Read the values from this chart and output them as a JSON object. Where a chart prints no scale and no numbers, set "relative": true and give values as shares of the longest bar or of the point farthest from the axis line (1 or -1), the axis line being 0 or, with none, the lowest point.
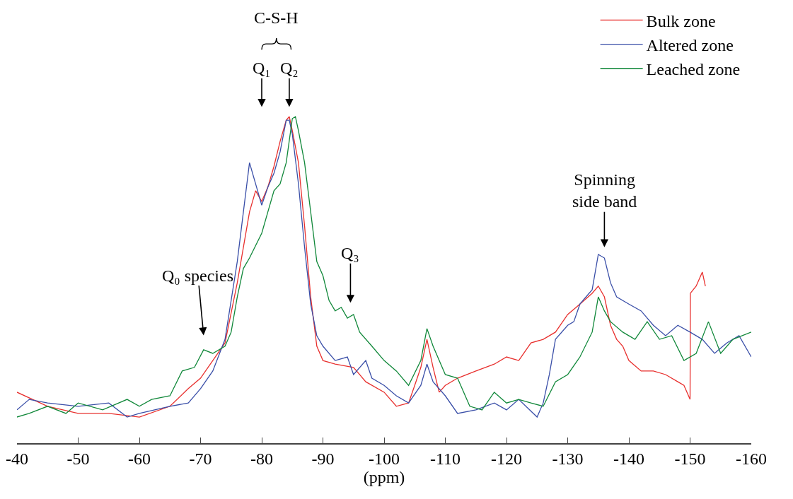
{
  "chart_data": {
    "type": "line",
    "relative": true,
    "xlabel": "(ppm)",
    "xlim": [
      -40,
      -160
    ],
    "xticks": [
      -40,
      -50,
      -60,
      -70,
      -80,
      -90,
      -100,
      -110,
      -120,
      -130,
      -140,
      -150,
      -160
    ],
    "grid": false,
    "legend": "top right",
    "marker": "none",
    "line_style": "solid",
    "series": [
      {
        "name": "Bulk zone",
        "color": "#e8302e",
        "x": [
          -40,
          -45,
          -50,
          -55,
          -60,
          -65,
          -68,
          -70,
          -72,
          -74,
          -76,
          -78,
          -79,
          -80,
          -81,
          -82,
          -83,
          -84,
          -84.5,
          -85,
          -86,
          -87,
          -88,
          -89,
          -90,
          -92,
          -95,
          -97,
          -100,
          -102,
          -104,
          -105,
          -106,
          -107,
          -108,
          -109,
          -110,
          -112,
          -115,
          -118,
          -120,
          -122,
          -124,
          -126,
          -128,
          -130,
          -132,
          -134,
          -135,
          -136,
          -137,
          -138,
          -139,
          -140,
          -142,
          -144,
          -146,
          -148,
          -149,
          -150,
          -150.05,
          -151,
          -152,
          -152.5
        ],
        "values": [
          0.156,
          0.113,
          0.091,
          0.091,
          0.08,
          0.113,
          0.167,
          0.199,
          0.253,
          0.307,
          0.491,
          0.708,
          0.773,
          0.74,
          0.784,
          0.848,
          0.924,
          0.989,
          1.0,
          0.957,
          0.859,
          0.665,
          0.448,
          0.297,
          0.253,
          0.242,
          0.232,
          0.188,
          0.156,
          0.113,
          0.123,
          0.177,
          0.232,
          0.318,
          0.232,
          0.156,
          0.177,
          0.199,
          0.221,
          0.242,
          0.264,
          0.253,
          0.307,
          0.318,
          0.34,
          0.394,
          0.426,
          0.459,
          0.481,
          0.448,
          0.361,
          0.318,
          0.297,
          0.253,
          0.221,
          0.221,
          0.21,
          0.188,
          0.177,
          0.134,
          0.459,
          0.481,
          0.524,
          0.481
        ]
      },
      {
        "name": "Altered zone",
        "color": "#3a4fa8",
        "x": [
          -40,
          -42,
          -45,
          -50,
          -55,
          -58,
          -60,
          -65,
          -68,
          -70,
          -72,
          -74,
          -76,
          -77,
          -78,
          -79,
          -80,
          -81,
          -82,
          -83,
          -84,
          -84.5,
          -85,
          -86,
          -87,
          -88,
          -89,
          -90,
          -92,
          -94,
          -95,
          -97,
          -98,
          -100,
          -102,
          -104,
          -106,
          -107,
          -108,
          -110,
          -112,
          -115,
          -118,
          -120,
          -122,
          -125,
          -126,
          -127,
          -128,
          -130,
          -131,
          -132,
          -133,
          -134,
          -135,
          -136,
          -137,
          -138,
          -140,
          -142,
          -144,
          -146,
          -148,
          -150,
          -152,
          -154,
          -156,
          -158,
          -160
        ],
        "values": [
          0.102,
          0.134,
          0.123,
          0.113,
          0.123,
          0.08,
          0.091,
          0.113,
          0.123,
          0.167,
          0.221,
          0.318,
          0.556,
          0.708,
          0.859,
          0.794,
          0.729,
          0.784,
          0.827,
          0.892,
          0.989,
          0.989,
          0.946,
          0.794,
          0.6,
          0.426,
          0.329,
          0.297,
          0.253,
          0.264,
          0.21,
          0.253,
          0.199,
          0.177,
          0.145,
          0.123,
          0.177,
          0.242,
          0.188,
          0.145,
          0.091,
          0.102,
          0.123,
          0.102,
          0.134,
          0.08,
          0.123,
          0.21,
          0.318,
          0.361,
          0.372,
          0.426,
          0.448,
          0.47,
          0.578,
          0.567,
          0.491,
          0.448,
          0.426,
          0.405,
          0.361,
          0.329,
          0.361,
          0.34,
          0.318,
          0.275,
          0.307,
          0.329,
          0.264
        ]
      },
      {
        "name": "Leached zone",
        "color": "#11883a",
        "x": [
          -40,
          -42,
          -45,
          -48,
          -50,
          -54,
          -58,
          -60,
          -62,
          -65,
          -67,
          -69,
          -70.5,
          -72,
          -74,
          -75,
          -76,
          -77,
          -78,
          -80,
          -81,
          -82,
          -83,
          -84,
          -85,
          -85.5,
          -86,
          -87,
          -88,
          -89,
          -90,
          -91,
          -92,
          -93,
          -94,
          -95,
          -96,
          -98,
          -100,
          -102,
          -104,
          -106,
          -107,
          -108,
          -110,
          -112,
          -114,
          -116,
          -118,
          -120,
          -122,
          -124,
          -126,
          -128,
          -130,
          -132,
          -134,
          -135,
          -136,
          -137,
          -139,
          -141,
          -143,
          -145,
          -147,
          -149,
          -151,
          -153,
          -155,
          -157,
          -160
        ],
        "values": [
          0.08,
          0.091,
          0.113,
          0.091,
          0.123,
          0.102,
          0.134,
          0.113,
          0.134,
          0.145,
          0.221,
          0.232,
          0.286,
          0.275,
          0.297,
          0.34,
          0.448,
          0.535,
          0.567,
          0.643,
          0.708,
          0.773,
          0.794,
          0.859,
          0.994,
          1.0,
          0.957,
          0.859,
          0.708,
          0.556,
          0.513,
          0.437,
          0.405,
          0.416,
          0.383,
          0.394,
          0.34,
          0.297,
          0.253,
          0.221,
          0.177,
          0.253,
          0.351,
          0.297,
          0.21,
          0.199,
          0.113,
          0.102,
          0.156,
          0.123,
          0.134,
          0.123,
          0.113,
          0.188,
          0.21,
          0.264,
          0.34,
          0.448,
          0.405,
          0.372,
          0.34,
          0.318,
          0.372,
          0.318,
          0.329,
          0.253,
          0.275,
          0.372,
          0.275,
          0.318,
          0.34
        ]
      }
    ],
    "annotations": [
      "C-S-H",
      "Q₁",
      "Q₂",
      "Q₀ species",
      "Q₃",
      "Spinning\nside band"
    ]
  }
}
